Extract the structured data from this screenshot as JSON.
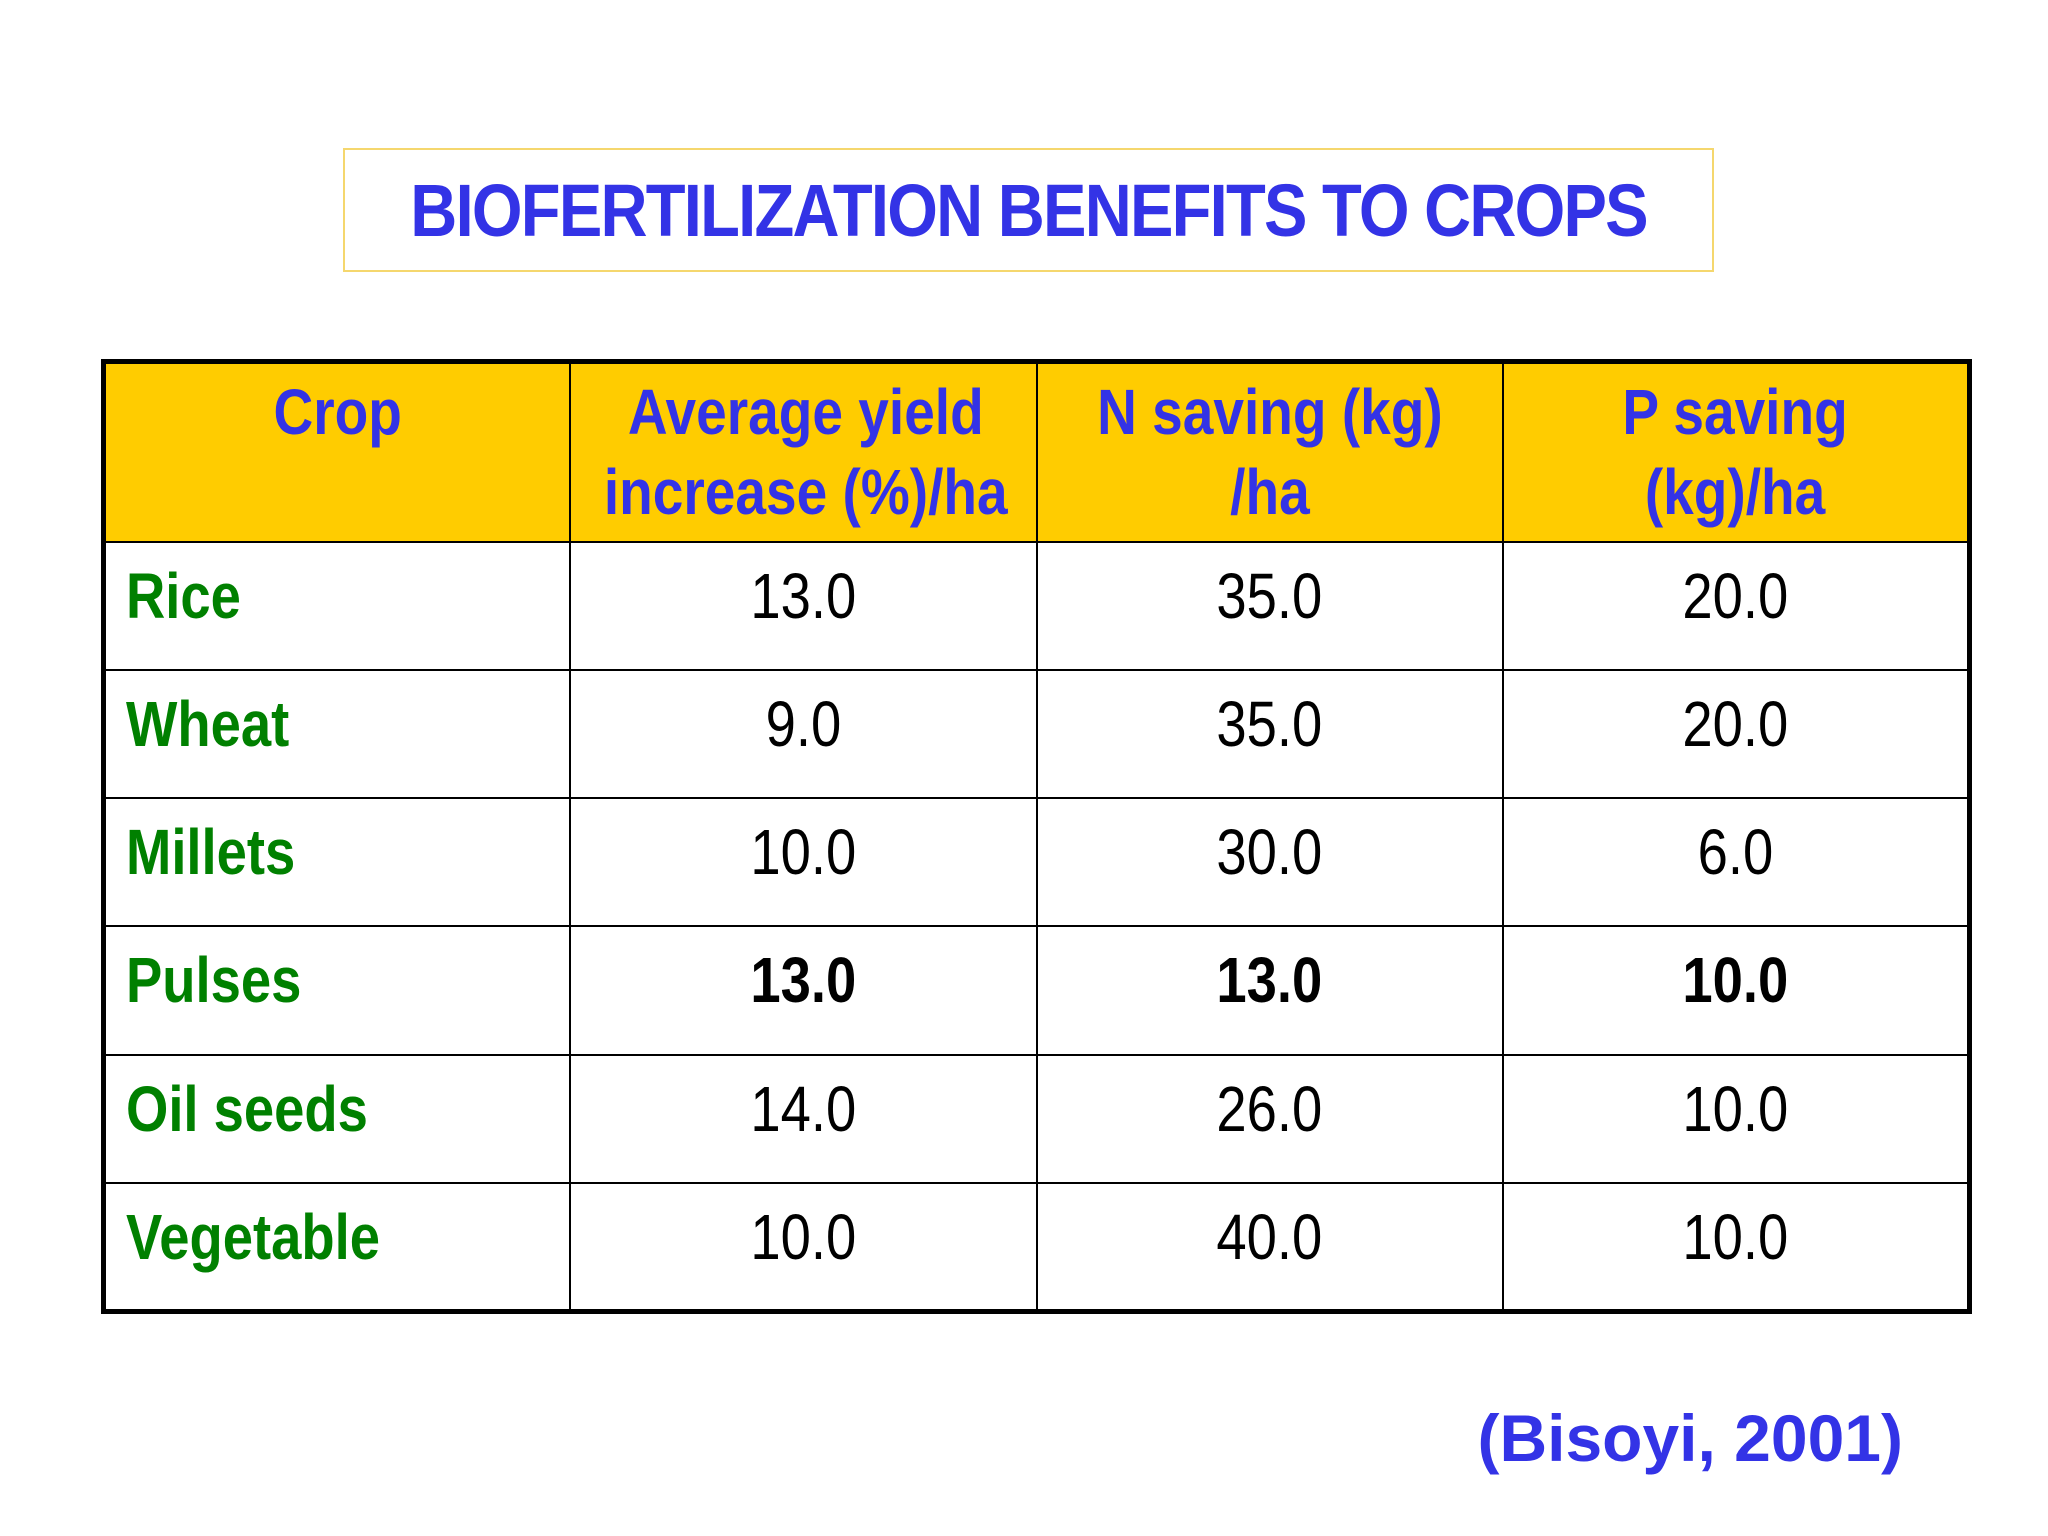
{
  "title": "BIOFERTILIZATION BENEFITS TO CROPS",
  "table": {
    "headers": [
      [
        "Crop"
      ],
      [
        "Average yield",
        "increase (%)/ha"
      ],
      [
        "N saving (kg)",
        "/ha"
      ],
      [
        "P saving",
        "(kg)/ha"
      ]
    ],
    "rows": [
      {
        "crop": "Rice",
        "yield": "13.0",
        "n": "35.0",
        "p": "20.0",
        "bold": false
      },
      {
        "crop": "Wheat",
        "yield": "9.0",
        "n": "35.0",
        "p": "20.0",
        "bold": false
      },
      {
        "crop": "Millets",
        "yield": "10.0",
        "n": "30.0",
        "p": "6.0",
        "bold": false
      },
      {
        "crop": "Pulses",
        "yield": "13.0",
        "n": "13.0",
        "p": "10.0",
        "bold": true
      },
      {
        "crop": "Oil seeds",
        "yield": "14.0",
        "n": "26.0",
        "p": "10.0",
        "bold": false
      },
      {
        "crop": "Vegetable",
        "yield": "10.0",
        "n": "40.0",
        "p": "10.0",
        "bold": false
      }
    ]
  },
  "citation": "(Bisoyi, 2001)",
  "colors": {
    "title": "#3333e6",
    "header_bg": "#ffcc00",
    "header_text": "#3333e6",
    "crop_text": "#008000",
    "value_text": "#000000",
    "title_border": "#f5d76e"
  }
}
